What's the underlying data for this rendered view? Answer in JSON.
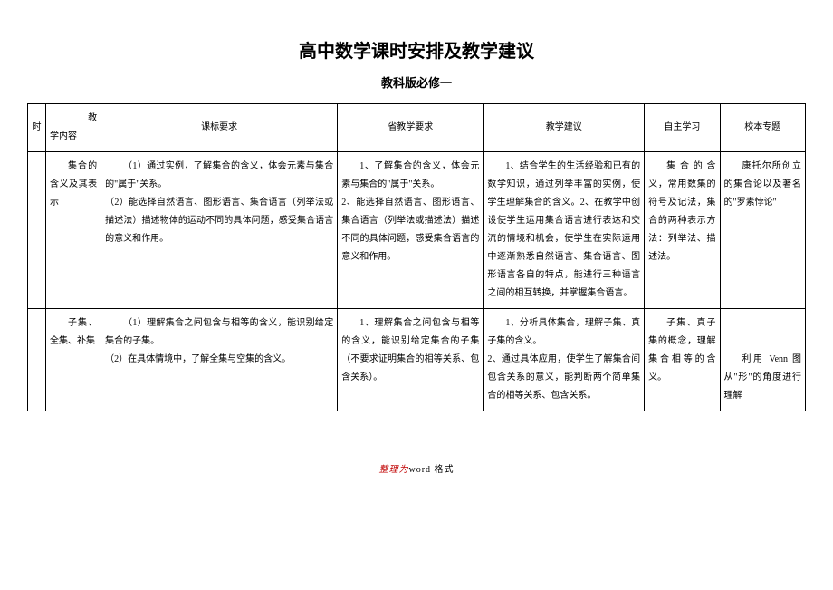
{
  "title": {
    "text": "高中数学课时安排及教学建议",
    "fontsize": 20
  },
  "subtitle": {
    "text": "教科版必修一",
    "fontsize": 13
  },
  "headers": {
    "time": "时",
    "content_top": "教",
    "content_bottom": "学内容",
    "req": "课标要求",
    "prov": "省教学要求",
    "advice": "教学建议",
    "self": "自主学习",
    "topic": "校本专题"
  },
  "rows": [
    {
      "time": "",
      "content": "集合的含义及其表示",
      "req": "（1）通过实例，了解集合的含义，体会元素与集合的\"属于\"关系。\n（2）能选择自然语言、图形语言、集合语言（列举法或描述法）描述物体的运动不同的具体问题，感受集合语言的意义和作用。",
      "prov": "1、了解集合的含义，体会元素与集合的\"属于\"关系。\n2、能选择自然语言、图形语言、集合语言（列举法或描述法）描述不同的具体问题，感受集合语言的意义和作用。",
      "advice": "1、结合学生的生活经验和已有的数学知识，通过列举丰富的实例，使学生理解集合的含义。2、在教学中创设使学生运用集合语言进行表达和交流的情境和机会，使学生在实际运用中逐渐熟悉自然语言、集合语言、图形语言各自的特点，能进行三种语言之间的相互转换，并掌握集合语言。",
      "self": "集合的含义，常用数集的符号及记法，集合的两种表示方法：列举法、描述法。",
      "topic": "康托尔所创立的集合论以及著名的\"罗素悖论\""
    },
    {
      "time": "",
      "content": "子集、全集、补集",
      "req": "（1）理解集合之间包含与相等的含义，能识别给定集合的子集。\n（2）在具体情境中，了解全集与空集的含义。",
      "prov": "1、理解集合之间包含与相等的含义，能识别给定集合的子集（不要求证明集合的相等关系、包含关系）。",
      "advice": "1、分析具体集合，理解子集、真子集的含义。\n2、通过具体应用，使学生了解集合间包含关系的意义，能判断两个简单集合的相等关系、包含关系。",
      "self": "子集、真子集的概念，理解集合相等的含义。",
      "topic_top": "",
      "topic_bottom": "利用 Venn 图从\"形\"的角度进行理解"
    }
  ],
  "footer": {
    "red": "整理为",
    "rest": "word 格式"
  },
  "style": {
    "font_family": "SimSun",
    "body_fontsize": 10,
    "line_height": 2.0,
    "border_color": "#000000",
    "footer_color": "#c00000",
    "bg": "#ffffff"
  }
}
